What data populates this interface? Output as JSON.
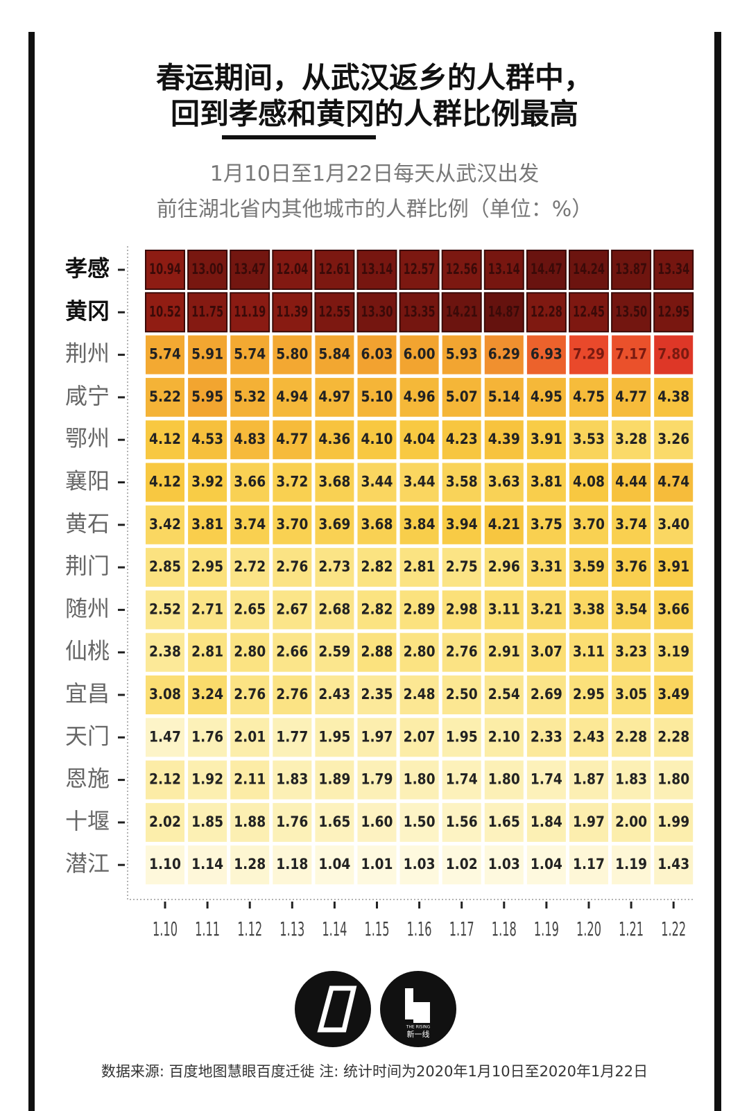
{
  "chart_data": {
    "type": "heatmap",
    "title": [
      "春运期间，从武汉返乡的人群中，",
      "回到孝感和黄冈的人群比例最高"
    ],
    "subtitle": [
      "1月10日至1月22日每天从武汉出发",
      "前往湖北省内其他城市的人群比例（单位：%）"
    ],
    "categories": [
      "1.10",
      "1.11",
      "1.12",
      "1.13",
      "1.14",
      "1.15",
      "1.16",
      "1.17",
      "1.18",
      "1.19",
      "1.20",
      "1.21",
      "1.22"
    ],
    "rows": [
      "孝感",
      "黄冈",
      "荆州",
      "咸宁",
      "鄂州",
      "襄阳",
      "黄石",
      "荆门",
      "随州",
      "仙桃",
      "宜昌",
      "天门",
      "恩施",
      "十堰",
      "潜江"
    ],
    "values": [
      [
        10.94,
        13.0,
        13.47,
        12.04,
        12.61,
        13.14,
        12.57,
        12.56,
        13.14,
        14.47,
        14.24,
        13.87,
        13.34
      ],
      [
        10.52,
        11.75,
        11.19,
        11.39,
        12.55,
        13.3,
        13.35,
        14.21,
        14.87,
        12.28,
        12.45,
        13.5,
        12.95
      ],
      [
        5.74,
        5.91,
        5.74,
        5.8,
        5.84,
        6.03,
        6.0,
        5.93,
        6.29,
        6.93,
        7.29,
        7.17,
        7.8
      ],
      [
        5.22,
        5.95,
        5.32,
        4.94,
        4.97,
        5.1,
        4.96,
        5.07,
        5.14,
        4.95,
        4.75,
        4.77,
        4.38
      ],
      [
        4.12,
        4.53,
        4.83,
        4.77,
        4.36,
        4.1,
        4.04,
        4.23,
        4.39,
        3.91,
        3.53,
        3.28,
        3.26
      ],
      [
        4.12,
        3.92,
        3.66,
        3.72,
        3.68,
        3.44,
        3.44,
        3.58,
        3.63,
        3.81,
        4.08,
        4.44,
        4.74
      ],
      [
        3.42,
        3.81,
        3.74,
        3.7,
        3.69,
        3.68,
        3.84,
        3.94,
        4.21,
        3.75,
        3.7,
        3.74,
        3.4
      ],
      [
        2.85,
        2.95,
        2.72,
        2.76,
        2.73,
        2.82,
        2.81,
        2.75,
        2.96,
        3.31,
        3.59,
        3.76,
        3.91
      ],
      [
        2.52,
        2.71,
        2.65,
        2.67,
        2.68,
        2.82,
        2.89,
        2.98,
        3.11,
        3.21,
        3.38,
        3.54,
        3.66
      ],
      [
        2.38,
        2.81,
        2.8,
        2.66,
        2.59,
        2.88,
        2.8,
        2.76,
        2.91,
        3.07,
        3.11,
        3.23,
        3.19
      ],
      [
        3.08,
        3.24,
        2.76,
        2.76,
        2.43,
        2.35,
        2.48,
        2.5,
        2.54,
        2.69,
        2.95,
        3.05,
        3.49
      ],
      [
        1.47,
        1.76,
        2.01,
        1.77,
        1.95,
        1.97,
        2.07,
        1.95,
        2.1,
        2.33,
        2.43,
        2.28,
        2.28
      ],
      [
        2.12,
        1.92,
        2.11,
        1.83,
        1.89,
        1.79,
        1.8,
        1.74,
        1.8,
        1.74,
        1.87,
        1.83,
        1.8
      ],
      [
        2.02,
        1.85,
        1.88,
        1.76,
        1.65,
        1.6,
        1.5,
        1.56,
        1.65,
        1.84,
        1.97,
        2.0,
        1.99
      ],
      [
        1.1,
        1.14,
        1.28,
        1.18,
        1.04,
        1.01,
        1.03,
        1.02,
        1.03,
        1.04,
        1.17,
        1.19,
        1.43
      ]
    ],
    "value_labels": [
      [
        "10.94",
        "13.00",
        "13.47",
        "12.04",
        "12.61",
        "13.14",
        "12.57",
        "12.56",
        "13.14",
        "14.47",
        "14.24",
        "13.87",
        "13.34"
      ],
      [
        "10.52",
        "11.75",
        "11.19",
        "11.39",
        "12.55",
        "13.30",
        "13.35",
        "14.21",
        "14.87",
        "12.28",
        "12.45",
        "13.50",
        "12.95"
      ],
      [
        "5.74",
        "5.91",
        "5.74",
        "5.80",
        "5.84",
        "6.03",
        "6.00",
        "5.93",
        "6.29",
        "6.93",
        "7.29",
        "7.17",
        "7.80"
      ],
      [
        "5.22",
        "5.95",
        "5.32",
        "4.94",
        "4.97",
        "5.10",
        "4.96",
        "5.07",
        "5.14",
        "4.95",
        "4.75",
        "4.77",
        "4.38"
      ],
      [
        "4.12",
        "4.53",
        "4.83",
        "4.77",
        "4.36",
        "4.10",
        "4.04",
        "4.23",
        "4.39",
        "3.91",
        "3.53",
        "3.28",
        "3.26"
      ],
      [
        "4.12",
        "3.92",
        "3.66",
        "3.72",
        "3.68",
        "3.44",
        "3.44",
        "3.58",
        "3.63",
        "3.81",
        "4.08",
        "4.44",
        "4.74"
      ],
      [
        "3.42",
        "3.81",
        "3.74",
        "3.70",
        "3.69",
        "3.68",
        "3.84",
        "3.94",
        "4.21",
        "3.75",
        "3.70",
        "3.74",
        "3.40"
      ],
      [
        "2.85",
        "2.95",
        "2.72",
        "2.76",
        "2.73",
        "2.82",
        "2.81",
        "2.75",
        "2.96",
        "3.31",
        "3.59",
        "3.76",
        "3.91"
      ],
      [
        "2.52",
        "2.71",
        "2.65",
        "2.67",
        "2.68",
        "2.82",
        "2.89",
        "2.98",
        "3.11",
        "3.21",
        "3.38",
        "3.54",
        "3.66"
      ],
      [
        "2.38",
        "2.81",
        "2.80",
        "2.66",
        "2.59",
        "2.88",
        "2.80",
        "2.76",
        "2.91",
        "3.07",
        "3.11",
        "3.23",
        "3.19"
      ],
      [
        "3.08",
        "3.24",
        "2.76",
        "2.76",
        "2.43",
        "2.35",
        "2.48",
        "2.50",
        "2.54",
        "2.69",
        "2.95",
        "3.05",
        "3.49"
      ],
      [
        "1.47",
        "1.76",
        "2.01",
        "1.77",
        "1.95",
        "1.97",
        "2.07",
        "1.95",
        "2.10",
        "2.33",
        "2.43",
        "2.28",
        "2.28"
      ],
      [
        "2.12",
        "1.92",
        "2.11",
        "1.83",
        "1.89",
        "1.79",
        "1.80",
        "1.74",
        "1.80",
        "1.74",
        "1.87",
        "1.83",
        "1.80"
      ],
      [
        "2.02",
        "1.85",
        "1.88",
        "1.76",
        "1.65",
        "1.60",
        "1.50",
        "1.56",
        "1.65",
        "1.84",
        "1.97",
        "2.00",
        "1.99"
      ],
      [
        "1.10",
        "1.14",
        "1.28",
        "1.18",
        "1.04",
        "1.01",
        "1.03",
        "1.02",
        "1.03",
        "1.04",
        "1.17",
        "1.19",
        "1.43"
      ]
    ]
  },
  "logo": {
    "brand": "THE RISING",
    "name": "新一线"
  },
  "footer": "数据来源: 百度地图慧眼百度迁徙   注: 统计时间为2020年1月10日至2020年1月22日"
}
